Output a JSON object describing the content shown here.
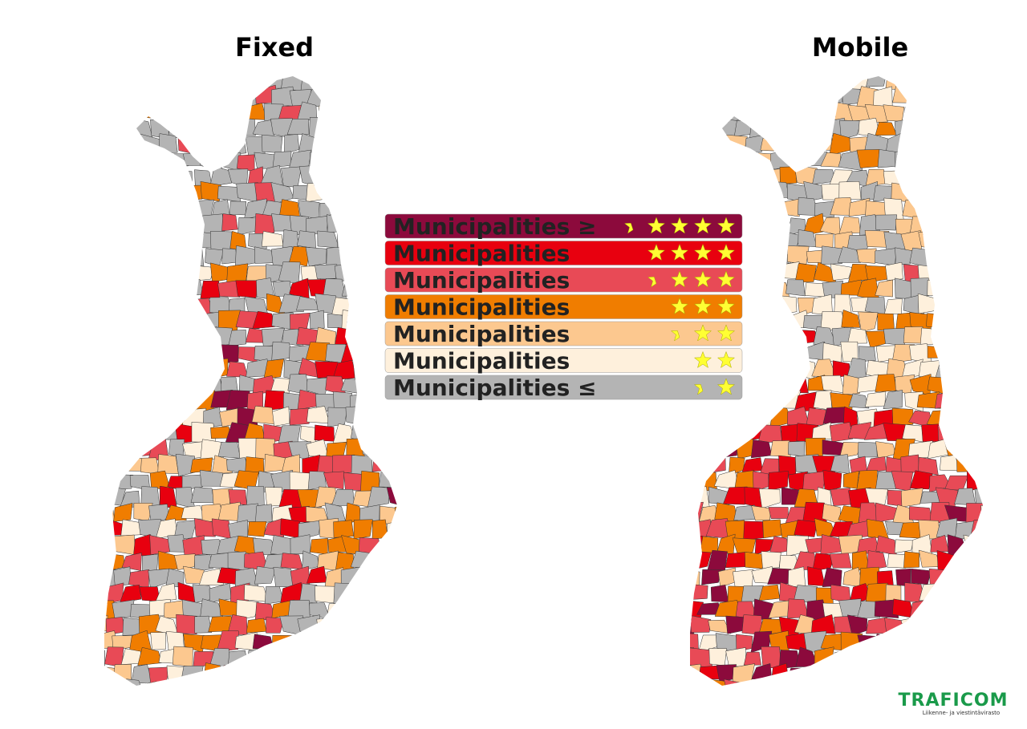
{
  "titles": {
    "fixed": "Fixed",
    "mobile": "Mobile"
  },
  "legend": [
    {
      "label": "Municipalities ≥",
      "color": "#8c0a3c"
    },
    {
      "label": "Municipalities",
      "color": "#e8000f"
    },
    {
      "label": "Municipalities",
      "color": "#e84a56"
    },
    {
      "label": "Municipalities",
      "color": "#f07d00"
    },
    {
      "label": "Municipalities",
      "color": "#fcc88f"
    },
    {
      "label": "Municipalities",
      "color": "#fef0dc"
    },
    {
      "label": "Municipalities ≤",
      "color": "#b4b4b4"
    }
  ],
  "logo": {
    "name": "TRAFICOM",
    "tagline": "Liikenne- ja viestintävirasto"
  }
}
